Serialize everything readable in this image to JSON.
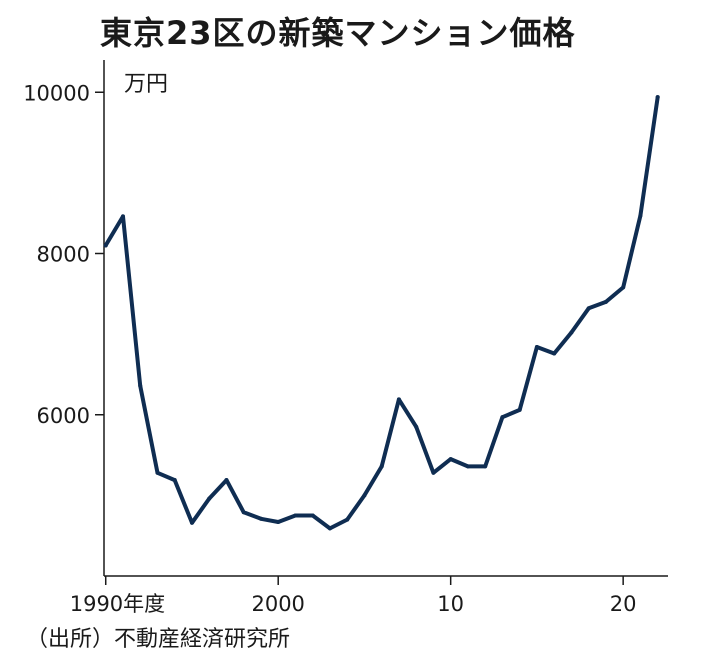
{
  "chart_data": {
    "type": "line",
    "title": "東京23区の新築マンション価格",
    "ylabel": "万円",
    "source": "（出所）不動産経済研究所",
    "x": [
      1990,
      1991,
      1992,
      1993,
      1994,
      1995,
      1996,
      1997,
      1998,
      1999,
      2000,
      2001,
      2002,
      2003,
      2004,
      2005,
      2006,
      2007,
      2008,
      2009,
      2010,
      2011,
      2012,
      2013,
      2014,
      2015,
      2016,
      2017,
      2018,
      2019,
      2020,
      2021,
      2022
    ],
    "series": [
      {
        "values": [
          8100,
          8460,
          6360,
          5280,
          5190,
          4660,
          4960,
          5190,
          4790,
          4710,
          4670,
          4750,
          4750,
          4590,
          4700,
          5000,
          5360,
          6190,
          5850,
          5280,
          5450,
          5360,
          5360,
          5970,
          6060,
          6840,
          6760,
          7020,
          7320,
          7400,
          7580,
          8470,
          9940
        ]
      }
    ],
    "xticks": [
      {
        "value": 1990,
        "label": "1990年度"
      },
      {
        "value": 2000,
        "label": "2000"
      },
      {
        "value": 2010,
        "label": "10"
      },
      {
        "value": 2020,
        "label": "20"
      }
    ],
    "yticks": [
      6000,
      8000,
      10000
    ],
    "xlim": [
      1989.9,
      2022.6
    ],
    "ylim": [
      4000,
      10400
    ],
    "grid": false,
    "legend": "none",
    "line_color": "#0f2d52"
  }
}
